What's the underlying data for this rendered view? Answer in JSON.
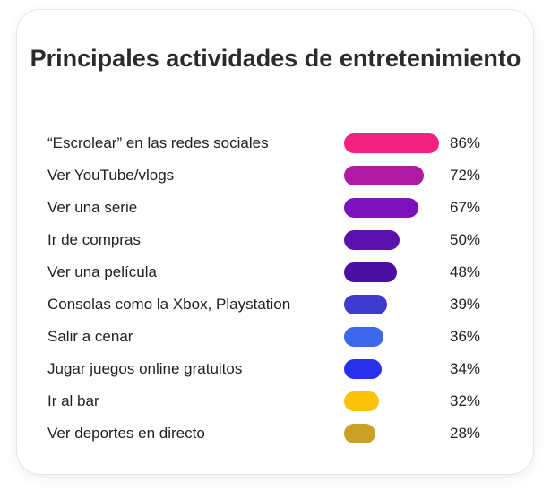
{
  "chart_data": {
    "type": "bar",
    "orientation": "horizontal",
    "title": "Principales actividades de entretenimiento",
    "categories": [
      "“Escrolear” en las redes sociales",
      "Ver YouTube/vlogs",
      "Ver una serie",
      "Ir de compras",
      "Ver una película",
      "Consolas como la Xbox, Playstation",
      "Salir a cenar",
      "Jugar juegos online gratuitos",
      "Ir al bar",
      "Ver deportes en directo"
    ],
    "values": [
      86,
      72,
      67,
      50,
      48,
      39,
      36,
      34,
      32,
      28
    ],
    "value_labels": [
      "86%",
      "72%",
      "67%",
      "50%",
      "48%",
      "39%",
      "36%",
      "34%",
      "32%",
      "28%"
    ],
    "colors": [
      "#f5217f",
      "#b01ba6",
      "#7b12bb",
      "#5a11ab",
      "#4b0fa4",
      "#403bcf",
      "#3d68ee",
      "#2b2fee",
      "#fcc20a",
      "#c9a126"
    ],
    "grid": false
  }
}
